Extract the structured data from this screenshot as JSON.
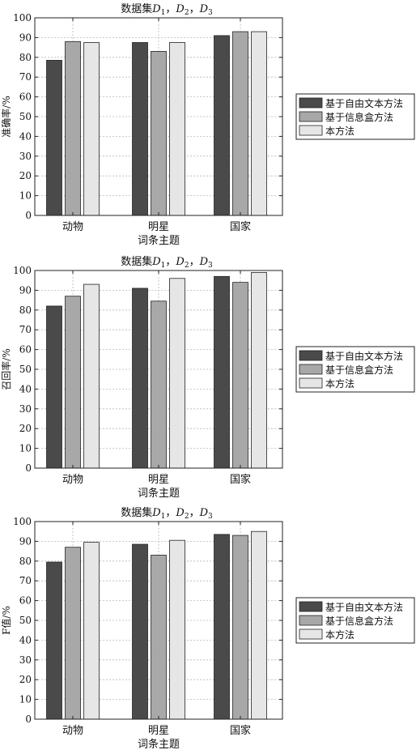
{
  "chart_data": [
    {
      "type": "bar",
      "title": "数据集D1，D2，D3",
      "title_parts": {
        "prefix": "数据集",
        "d1": "D",
        "s1": "1",
        "sep1": "，",
        "d2": "D",
        "s2": "2",
        "sep2": "，",
        "d3": "D",
        "s3": "3"
      },
      "xlabel": "词条主题",
      "ylabel": "准确率/%",
      "categories": [
        "动物",
        "明星",
        "国家"
      ],
      "series": [
        {
          "name": "基于自由文本方法",
          "values": [
            78.5,
            87.5,
            91.0
          ]
        },
        {
          "name": "基于信息盒方法",
          "values": [
            88.0,
            83.0,
            93.0
          ]
        },
        {
          "name": "本方法",
          "values": [
            87.5,
            87.5,
            93.0
          ]
        }
      ],
      "ylim": [
        0,
        100
      ],
      "yticks": [
        0,
        10,
        20,
        30,
        40,
        50,
        60,
        70,
        80,
        90,
        100
      ],
      "grid": true,
      "legend_position": "right"
    },
    {
      "type": "bar",
      "title": "数据集D1，D2，D3",
      "title_parts": {
        "prefix": "数据集",
        "d1": "D",
        "s1": "1",
        "sep1": "，",
        "d2": "D",
        "s2": "2",
        "sep2": "，",
        "d3": "D",
        "s3": "3"
      },
      "xlabel": "词条主题",
      "ylabel": "召回率/%",
      "categories": [
        "动物",
        "明星",
        "国家"
      ],
      "series": [
        {
          "name": "基于自由文本方法",
          "values": [
            82.0,
            91.0,
            97.0
          ]
        },
        {
          "name": "基于信息盒方法",
          "values": [
            87.0,
            84.5,
            94.0
          ]
        },
        {
          "name": "本方法",
          "values": [
            93.0,
            96.0,
            99.0
          ]
        }
      ],
      "ylim": [
        0,
        100
      ],
      "yticks": [
        0,
        10,
        20,
        30,
        40,
        50,
        60,
        70,
        80,
        90,
        100
      ],
      "grid": true,
      "legend_position": "right"
    },
    {
      "type": "bar",
      "title": "数据集D1，D2，D3",
      "title_parts": {
        "prefix": "数据集",
        "d1": "D",
        "s1": "1",
        "sep1": "，",
        "d2": "D",
        "s2": "2",
        "sep2": "，",
        "d3": "D",
        "s3": "3"
      },
      "xlabel": "词条主题",
      "ylabel": "F值/%",
      "categories": [
        "动物",
        "明星",
        "国家"
      ],
      "series": [
        {
          "name": "基于自由文本方法",
          "values": [
            79.5,
            88.5,
            93.5
          ]
        },
        {
          "name": "基于信息盒方法",
          "values": [
            87.0,
            83.0,
            93.0
          ]
        },
        {
          "name": "本方法",
          "values": [
            89.5,
            90.5,
            95.0
          ]
        }
      ],
      "ylim": [
        0,
        100
      ],
      "yticks": [
        0,
        10,
        20,
        30,
        40,
        50,
        60,
        70,
        80,
        90,
        100
      ],
      "grid": true,
      "legend_position": "right"
    }
  ],
  "colors": {
    "series": [
      "#4a4a4a",
      "#a8a8a8",
      "#e6e6e6"
    ],
    "grid": "#b8b8b8",
    "axis": "#222222"
  }
}
